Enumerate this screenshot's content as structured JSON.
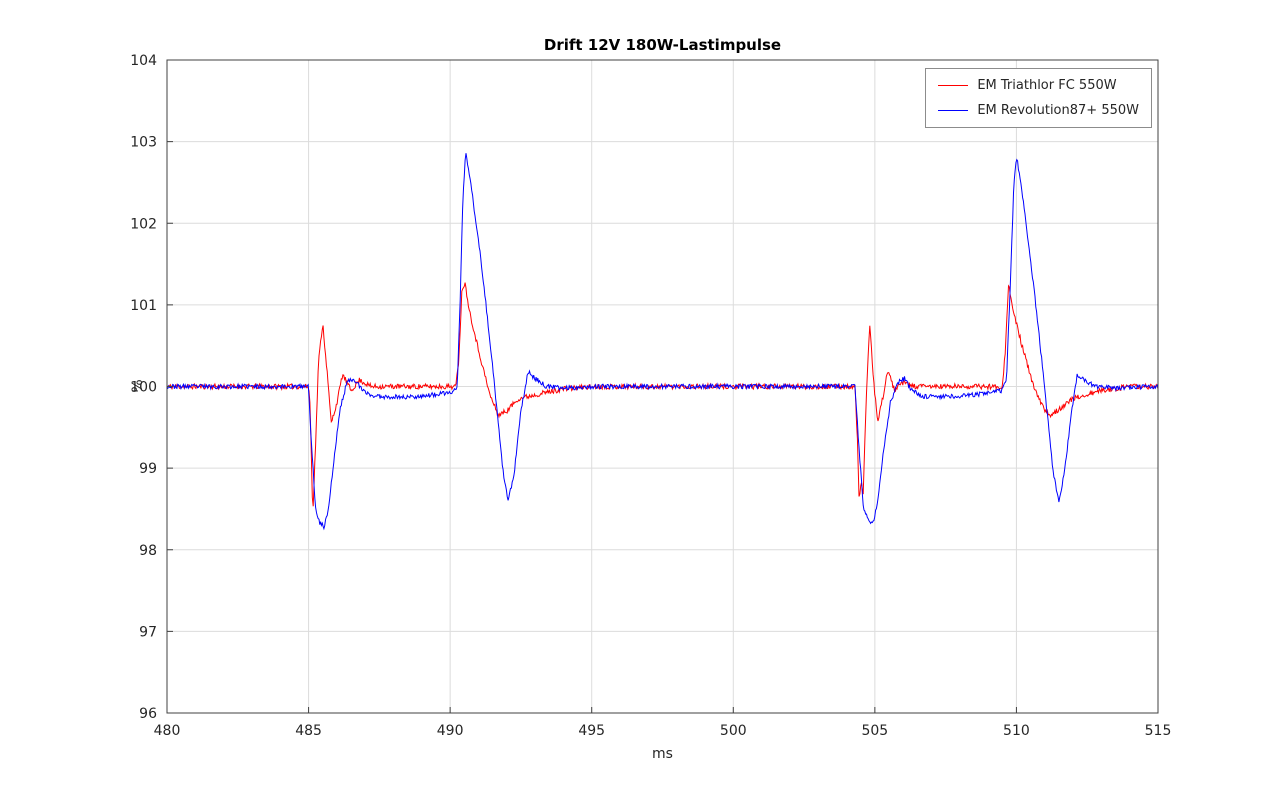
{
  "figure": {
    "title": "Drift 12V 180W-Lastimpulse",
    "xlabel": "ms",
    "ylabel": "%"
  },
  "chart_data": {
    "type": "line",
    "title": "Drift 12V 180W-Lastimpulse",
    "xlabel": "ms",
    "ylabel": "%",
    "xlim": [
      480,
      515
    ],
    "ylim": [
      96,
      104
    ],
    "xticks": [
      480,
      485,
      490,
      495,
      500,
      505,
      510,
      515
    ],
    "yticks": [
      96,
      97,
      98,
      99,
      100,
      101,
      102,
      103,
      104
    ],
    "grid": true,
    "legend_position": "top-right",
    "axis_color": "#404040",
    "grid_color": "#dcdcdc",
    "background": "#ffffff",
    "series": [
      {
        "name": "EM Triathlor FC 550W",
        "color": "#ff0000",
        "noise_amplitude": 0.032,
        "noise_seed": 11,
        "keypoints": [
          [
            480.0,
            100.0
          ],
          [
            485.0,
            100.0
          ],
          [
            485.05,
            99.8
          ],
          [
            485.15,
            98.45
          ],
          [
            485.25,
            99.3
          ],
          [
            485.35,
            100.3
          ],
          [
            485.5,
            100.78
          ],
          [
            485.65,
            100.2
          ],
          [
            485.8,
            99.55
          ],
          [
            486.0,
            99.8
          ],
          [
            486.2,
            100.15
          ],
          [
            486.5,
            99.95
          ],
          [
            486.8,
            100.08
          ],
          [
            487.2,
            100.0
          ],
          [
            490.2,
            100.0
          ],
          [
            490.3,
            100.3
          ],
          [
            490.42,
            101.2
          ],
          [
            490.52,
            101.27
          ],
          [
            490.7,
            100.9
          ],
          [
            491.0,
            100.45
          ],
          [
            491.4,
            99.9
          ],
          [
            491.7,
            99.65
          ],
          [
            492.0,
            99.7
          ],
          [
            492.4,
            99.85
          ],
          [
            493.0,
            99.9
          ],
          [
            494.0,
            99.97
          ],
          [
            495.0,
            100.0
          ],
          [
            504.3,
            100.0
          ],
          [
            504.4,
            99.2
          ],
          [
            504.45,
            98.55
          ],
          [
            504.52,
            98.9
          ],
          [
            504.58,
            98.6
          ],
          [
            504.7,
            99.9
          ],
          [
            504.82,
            100.75
          ],
          [
            504.95,
            100.1
          ],
          [
            505.1,
            99.55
          ],
          [
            505.3,
            99.9
          ],
          [
            505.45,
            100.2
          ],
          [
            505.7,
            99.95
          ],
          [
            506.0,
            100.05
          ],
          [
            506.4,
            100.0
          ],
          [
            509.5,
            100.0
          ],
          [
            509.6,
            100.4
          ],
          [
            509.72,
            101.25
          ],
          [
            509.9,
            100.9
          ],
          [
            510.2,
            100.5
          ],
          [
            510.6,
            100.0
          ],
          [
            511.0,
            99.7
          ],
          [
            511.2,
            99.65
          ],
          [
            511.6,
            99.75
          ],
          [
            512.0,
            99.85
          ],
          [
            513.0,
            99.95
          ],
          [
            514.0,
            100.0
          ],
          [
            515.0,
            100.0
          ]
        ]
      },
      {
        "name": "EM Revolution87+ 550W",
        "color": "#0000ff",
        "noise_amplitude": 0.028,
        "noise_seed": 23,
        "keypoints": [
          [
            480.0,
            100.0
          ],
          [
            485.0,
            100.0
          ],
          [
            485.1,
            99.3
          ],
          [
            485.25,
            98.5
          ],
          [
            485.4,
            98.33
          ],
          [
            485.55,
            98.28
          ],
          [
            485.7,
            98.5
          ],
          [
            485.9,
            99.1
          ],
          [
            486.1,
            99.7
          ],
          [
            486.35,
            100.05
          ],
          [
            486.6,
            100.1
          ],
          [
            486.9,
            99.95
          ],
          [
            487.3,
            99.88
          ],
          [
            488.5,
            99.87
          ],
          [
            489.5,
            99.9
          ],
          [
            490.1,
            99.93
          ],
          [
            490.25,
            100.0
          ],
          [
            490.35,
            101.0
          ],
          [
            490.45,
            102.3
          ],
          [
            490.55,
            102.87
          ],
          [
            490.7,
            102.55
          ],
          [
            491.0,
            101.8
          ],
          [
            491.3,
            100.9
          ],
          [
            491.6,
            99.9
          ],
          [
            491.85,
            99.0
          ],
          [
            492.05,
            98.6
          ],
          [
            492.25,
            98.9
          ],
          [
            492.5,
            99.7
          ],
          [
            492.75,
            100.18
          ],
          [
            493.0,
            100.1
          ],
          [
            493.4,
            100.0
          ],
          [
            494.0,
            99.98
          ],
          [
            495.0,
            100.0
          ],
          [
            504.3,
            100.0
          ],
          [
            504.45,
            99.2
          ],
          [
            504.6,
            98.5
          ],
          [
            504.8,
            98.35
          ],
          [
            504.95,
            98.33
          ],
          [
            505.1,
            98.6
          ],
          [
            505.3,
            99.2
          ],
          [
            505.55,
            99.8
          ],
          [
            505.8,
            100.05
          ],
          [
            506.05,
            100.1
          ],
          [
            506.3,
            99.95
          ],
          [
            506.7,
            99.88
          ],
          [
            508.0,
            99.88
          ],
          [
            509.0,
            99.92
          ],
          [
            509.5,
            99.95
          ],
          [
            509.65,
            100.1
          ],
          [
            509.78,
            101.2
          ],
          [
            509.9,
            102.4
          ],
          [
            510.0,
            102.83
          ],
          [
            510.15,
            102.5
          ],
          [
            510.45,
            101.7
          ],
          [
            510.75,
            100.8
          ],
          [
            511.05,
            99.8
          ],
          [
            511.3,
            98.95
          ],
          [
            511.5,
            98.6
          ],
          [
            511.7,
            98.95
          ],
          [
            511.95,
            99.7
          ],
          [
            512.15,
            100.15
          ],
          [
            512.4,
            100.08
          ],
          [
            512.8,
            100.0
          ],
          [
            513.5,
            99.98
          ],
          [
            515.0,
            100.0
          ]
        ]
      }
    ]
  }
}
